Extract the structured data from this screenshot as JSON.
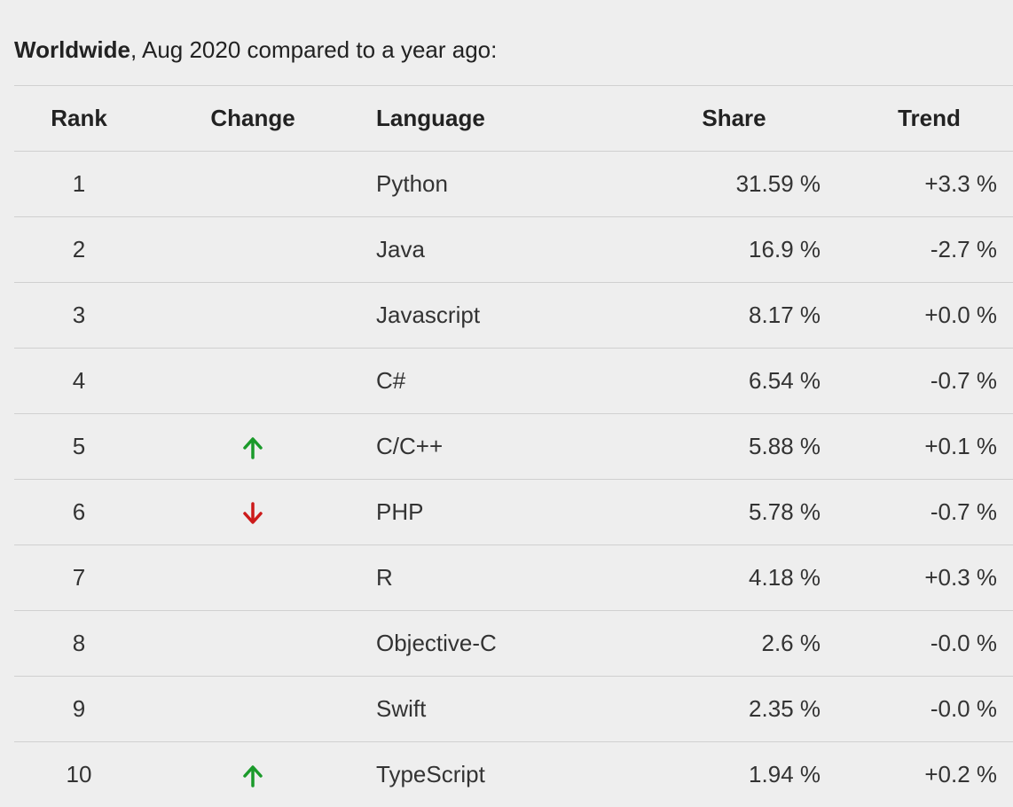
{
  "caption": {
    "region": "Worldwide",
    "rest": ", Aug 2020 compared to a year ago:"
  },
  "colors": {
    "up": "#1a9a2a",
    "down": "#cc1a1a"
  },
  "chart_data": {
    "type": "table",
    "columns": [
      "Rank",
      "Change",
      "Language",
      "Share",
      "Trend"
    ],
    "rows": [
      {
        "rank": "1",
        "change": "",
        "language": "Python",
        "share": "31.59 %",
        "trend": "+3.3 %"
      },
      {
        "rank": "2",
        "change": "",
        "language": "Java",
        "share": "16.9 %",
        "trend": "-2.7 %"
      },
      {
        "rank": "3",
        "change": "",
        "language": "Javascript",
        "share": "8.17 %",
        "trend": "+0.0 %"
      },
      {
        "rank": "4",
        "change": "",
        "language": "C#",
        "share": "6.54 %",
        "trend": "-0.7 %"
      },
      {
        "rank": "5",
        "change": "up",
        "language": "C/C++",
        "share": "5.88 %",
        "trend": "+0.1 %"
      },
      {
        "rank": "6",
        "change": "down",
        "language": "PHP",
        "share": "5.78 %",
        "trend": "-0.7 %"
      },
      {
        "rank": "7",
        "change": "",
        "language": "R",
        "share": "4.18 %",
        "trend": "+0.3 %"
      },
      {
        "rank": "8",
        "change": "",
        "language": "Objective-C",
        "share": "2.6 %",
        "trend": "-0.0 %"
      },
      {
        "rank": "9",
        "change": "",
        "language": "Swift",
        "share": "2.35 %",
        "trend": "-0.0 %"
      },
      {
        "rank": "10",
        "change": "up",
        "language": "TypeScript",
        "share": "1.94 %",
        "trend": "+0.2 %"
      }
    ]
  }
}
